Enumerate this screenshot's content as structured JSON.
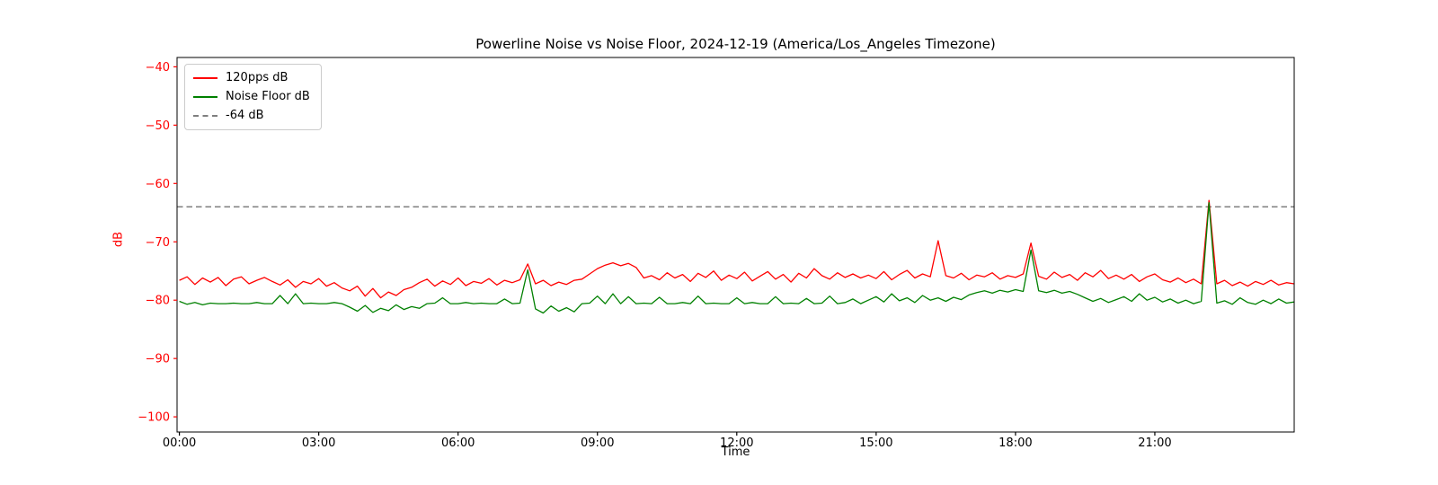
{
  "title": "Powerline Noise vs Noise Floor, 2024-12-19 (America/Los_Angeles Timezone)",
  "axes": {
    "ylabel": "dB",
    "xlabel": "Time",
    "y_axis_color": "#ff0000",
    "x_axis_color": "#000000",
    "spine_color": "#000000"
  },
  "legend": {
    "items": [
      {
        "label": "120pps dB",
        "color": "#ff0000",
        "dash": false
      },
      {
        "label": "Noise Floor dB",
        "color": "#008000",
        "dash": false
      },
      {
        "label": "-64 dB",
        "color": "#7f7f7f",
        "dash": true
      }
    ]
  },
  "chart_data": {
    "type": "line",
    "title": "Powerline Noise vs Noise Floor, 2024-12-19 (America/Los_Angeles Timezone)",
    "xlabel": "Time",
    "ylabel": "dB",
    "grid": false,
    "legend_position": "upper-left",
    "xlim_hours": [
      -0.05,
      24.0
    ],
    "ylim": [
      -102.6,
      -38.4
    ],
    "x_start_hour": 0,
    "x_step_minutes": 10,
    "y_ticks": [
      {
        "v": -40,
        "label": "−40"
      },
      {
        "v": -50,
        "label": "−50"
      },
      {
        "v": -60,
        "label": "−60"
      },
      {
        "v": -70,
        "label": "−70"
      },
      {
        "v": -80,
        "label": "−80"
      },
      {
        "v": -90,
        "label": "−90"
      },
      {
        "v": -100,
        "label": "−100"
      }
    ],
    "x_ticks": [
      {
        "h": 0,
        "label": "00:00"
      },
      {
        "h": 3,
        "label": "03:00"
      },
      {
        "h": 6,
        "label": "06:00"
      },
      {
        "h": 9,
        "label": "09:00"
      },
      {
        "h": 12,
        "label": "12:00"
      },
      {
        "h": 15,
        "label": "15:00"
      },
      {
        "h": 18,
        "label": "18:00"
      },
      {
        "h": 21,
        "label": "21:00"
      }
    ],
    "reference_line": {
      "label": "-64 dB",
      "value": -64,
      "color": "#7f7f7f",
      "style": "dashed"
    },
    "series": [
      {
        "id": "120pps",
        "name": "120pps dB",
        "color": "#ff0000",
        "values": [
          -76.6,
          -76.0,
          -77.3,
          -76.2,
          -76.9,
          -76.1,
          -77.5,
          -76.4,
          -76.0,
          -77.2,
          -76.6,
          -76.1,
          -76.8,
          -77.4,
          -76.5,
          -77.8,
          -76.8,
          -77.2,
          -76.3,
          -77.6,
          -77.0,
          -77.9,
          -78.4,
          -77.6,
          -79.3,
          -78.0,
          -79.6,
          -78.6,
          -79.2,
          -78.2,
          -77.8,
          -77.0,
          -76.4,
          -77.6,
          -76.7,
          -77.3,
          -76.2,
          -77.5,
          -76.8,
          -77.1,
          -76.3,
          -77.4,
          -76.6,
          -77.0,
          -76.5,
          -73.8,
          -77.2,
          -76.6,
          -77.5,
          -76.9,
          -77.3,
          -76.6,
          -76.4,
          -75.5,
          -74.6,
          -74.0,
          -73.6,
          -74.1,
          -73.7,
          -74.4,
          -76.2,
          -75.8,
          -76.5,
          -75.3,
          -76.2,
          -75.6,
          -76.8,
          -75.4,
          -76.1,
          -75.0,
          -76.6,
          -75.7,
          -76.3,
          -75.2,
          -76.7,
          -75.9,
          -75.1,
          -76.4,
          -75.6,
          -76.9,
          -75.4,
          -76.2,
          -74.6,
          -75.8,
          -76.4,
          -75.3,
          -76.1,
          -75.5,
          -76.2,
          -75.7,
          -76.3,
          -75.1,
          -76.5,
          -75.6,
          -74.9,
          -76.2,
          -75.5,
          -76.0,
          -69.8,
          -75.8,
          -76.2,
          -75.4,
          -76.5,
          -75.7,
          -76.0,
          -75.3,
          -76.4,
          -75.8,
          -76.1,
          -75.5,
          -70.2,
          -75.9,
          -76.4,
          -75.2,
          -76.1,
          -75.6,
          -76.6,
          -75.3,
          -76.0,
          -74.9,
          -76.3,
          -75.7,
          -76.4,
          -75.6,
          -76.8,
          -76.0,
          -75.5,
          -76.5,
          -76.9,
          -76.2,
          -77.0,
          -76.4,
          -77.2,
          -62.9,
          -77.2,
          -76.6,
          -77.5,
          -76.9,
          -77.6,
          -76.8,
          -77.3,
          -76.6,
          -77.4,
          -77.0,
          -77.2
        ]
      },
      {
        "id": "noise-floor",
        "name": "Noise Floor dB",
        "color": "#008000",
        "values": [
          -80.2,
          -80.7,
          -80.4,
          -80.8,
          -80.5,
          -80.6,
          -80.6,
          -80.5,
          -80.6,
          -80.6,
          -80.4,
          -80.6,
          -80.6,
          -79.2,
          -80.6,
          -78.9,
          -80.6,
          -80.5,
          -80.6,
          -80.6,
          -80.4,
          -80.6,
          -81.2,
          -81.9,
          -80.9,
          -82.1,
          -81.4,
          -81.8,
          -80.8,
          -81.6,
          -81.1,
          -81.4,
          -80.6,
          -80.5,
          -79.6,
          -80.6,
          -80.6,
          -80.4,
          -80.6,
          -80.5,
          -80.6,
          -80.6,
          -79.8,
          -80.6,
          -80.5,
          -74.8,
          -81.5,
          -82.2,
          -81.0,
          -81.9,
          -81.3,
          -82.0,
          -80.6,
          -80.5,
          -79.3,
          -80.6,
          -78.9,
          -80.6,
          -79.4,
          -80.6,
          -80.5,
          -80.6,
          -79.5,
          -80.6,
          -80.6,
          -80.4,
          -80.6,
          -79.3,
          -80.6,
          -80.5,
          -80.6,
          -80.6,
          -79.6,
          -80.6,
          -80.4,
          -80.6,
          -80.6,
          -79.4,
          -80.6,
          -80.5,
          -80.6,
          -79.7,
          -80.6,
          -80.5,
          -79.3,
          -80.6,
          -80.4,
          -79.8,
          -80.6,
          -80.0,
          -79.4,
          -80.3,
          -78.9,
          -80.1,
          -79.6,
          -80.4,
          -79.2,
          -80.0,
          -79.6,
          -80.2,
          -79.5,
          -79.9,
          -79.1,
          -78.7,
          -78.4,
          -78.8,
          -78.3,
          -78.6,
          -78.2,
          -78.5,
          -71.4,
          -78.4,
          -78.7,
          -78.3,
          -78.8,
          -78.5,
          -79.0,
          -79.6,
          -80.2,
          -79.7,
          -80.4,
          -79.9,
          -79.4,
          -80.2,
          -78.9,
          -80.0,
          -79.5,
          -80.3,
          -79.8,
          -80.5,
          -80.0,
          -80.6,
          -80.2,
          -63.3,
          -80.5,
          -80.1,
          -80.7,
          -79.6,
          -80.4,
          -80.7,
          -80.0,
          -80.6,
          -79.8,
          -80.5,
          -80.3
        ]
      }
    ]
  }
}
